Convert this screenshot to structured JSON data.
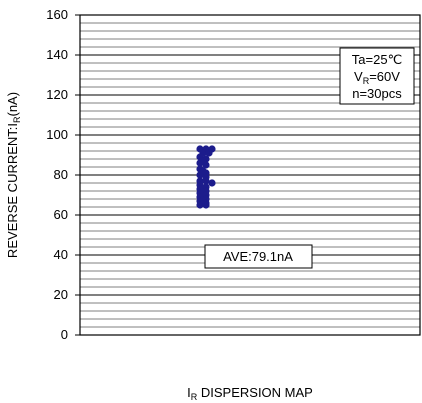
{
  "chart_data": {
    "type": "scatter",
    "xlabel_main": "I",
    "xlabel_sub": "R",
    "xlabel_rest": " DISPERSION MAP",
    "ylabel_main": "REVERSE CURRENT:I",
    "ylabel_sub": "R",
    "ylabel_rest": "(nA)",
    "ylim": [
      0,
      160
    ],
    "ytick_labels": [
      "0",
      "20",
      "40",
      "60",
      "80",
      "100",
      "120",
      "140",
      "160"
    ],
    "grid_minor_step": 4,
    "conditions": {
      "line1": "Ta=25℃",
      "line2_main": "V",
      "line2_sub": "R",
      "line2_rest": "=60V",
      "line3": "n=30pcs"
    },
    "average_label": "AVE:79.1nA",
    "point_color": "#1c1c8c",
    "points": [
      {
        "x": 0.0,
        "y": 93
      },
      {
        "x": 1.0,
        "y": 93
      },
      {
        "x": 2.0,
        "y": 93
      },
      {
        "x": 0.5,
        "y": 91
      },
      {
        "x": 1.5,
        "y": 91
      },
      {
        "x": 0.0,
        "y": 89
      },
      {
        "x": 1.0,
        "y": 88
      },
      {
        "x": 0.0,
        "y": 86
      },
      {
        "x": 1.0,
        "y": 85
      },
      {
        "x": 0.0,
        "y": 83
      },
      {
        "x": 1.0,
        "y": 81
      },
      {
        "x": 0.0,
        "y": 80
      },
      {
        "x": 1.0,
        "y": 79
      },
      {
        "x": 0.0,
        "y": 77
      },
      {
        "x": 1.0,
        "y": 77
      },
      {
        "x": 2.0,
        "y": 76
      },
      {
        "x": 0.0,
        "y": 75
      },
      {
        "x": 1.0,
        "y": 74
      },
      {
        "x": 0.0,
        "y": 73
      },
      {
        "x": 1.0,
        "y": 72
      },
      {
        "x": 0.0,
        "y": 71
      },
      {
        "x": 1.0,
        "y": 70
      },
      {
        "x": 0.0,
        "y": 69
      },
      {
        "x": 1.0,
        "y": 68
      },
      {
        "x": 0.0,
        "y": 67
      },
      {
        "x": 1.0,
        "y": 66
      },
      {
        "x": 0.0,
        "y": 65
      },
      {
        "x": 1.0,
        "y": 65
      },
      {
        "x": 0.5,
        "y": 82
      },
      {
        "x": 0.5,
        "y": 87
      }
    ]
  }
}
